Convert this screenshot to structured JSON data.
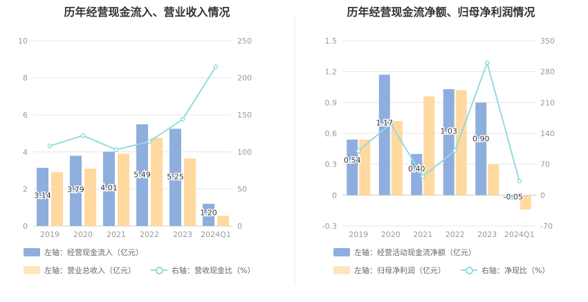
{
  "charts": [
    {
      "title": "历年经营现金流入、营业收入情况",
      "legend": {
        "bar1": "左轴：经营现金流入（亿元）",
        "bar2": "左轴：营业总收入（亿元）",
        "line": "右轴：营收现金比（%）"
      }
    },
    {
      "title": "历年经营现金流净额、归母净利润情况",
      "legend": {
        "bar1": "左轴：经营活动现金流净额（亿元）",
        "bar2": "左轴：归母净利润（亿元）",
        "line": "右轴：净现比（%）"
      }
    }
  ],
  "colors": {
    "bar1": "#8eaedd",
    "bar2": "#ffd99f",
    "line": "#93dade"
  },
  "chart_data": [
    {
      "type": "bar",
      "title": "历年经营现金流入、营业收入情况",
      "categories": [
        "2019",
        "2020",
        "2021",
        "2022",
        "2023",
        "2024Q1"
      ],
      "left_axis": {
        "ylim": [
          0,
          10
        ],
        "ticks": [
          0,
          2,
          4,
          6,
          8,
          10
        ]
      },
      "right_axis": {
        "ylim": [
          0,
          250
        ],
        "ticks": [
          0,
          50,
          100,
          150,
          200,
          250
        ]
      },
      "series": [
        {
          "name": "左轴：经营现金流入（亿元）",
          "kind": "bar",
          "axis": "left",
          "values": [
            3.14,
            3.79,
            4.01,
            5.49,
            5.25,
            1.2
          ],
          "labels": [
            "3.14",
            "3.79",
            "4.01",
            "5.49",
            "5.25",
            "1.20"
          ]
        },
        {
          "name": "左轴：营业总收入（亿元）",
          "kind": "bar",
          "axis": "left",
          "values": [
            2.9,
            3.1,
            3.9,
            4.75,
            3.65,
            0.55
          ]
        },
        {
          "name": "右轴：营收现金比（%）",
          "kind": "line",
          "axis": "right",
          "values": [
            108,
            122,
            103,
            114,
            144,
            215
          ]
        }
      ]
    },
    {
      "type": "bar",
      "title": "历年经营现金流净额、归母净利润情况",
      "categories": [
        "2019",
        "2020",
        "2021",
        "2022",
        "2023",
        "2024Q1"
      ],
      "left_axis": {
        "ylim": [
          -0.3,
          1.5
        ],
        "ticks": [
          -0.3,
          0,
          0.3,
          0.6,
          0.9,
          1.2,
          1.5
        ]
      },
      "right_axis": {
        "ylim": [
          -70,
          350
        ],
        "ticks": [
          -70,
          0,
          70,
          140,
          210,
          280,
          350
        ]
      },
      "series": [
        {
          "name": "左轴：经营活动现金流净额（亿元）",
          "kind": "bar",
          "axis": "left",
          "values": [
            0.54,
            1.17,
            0.4,
            1.03,
            0.9,
            -0.05
          ],
          "labels": [
            "0.54",
            "1.17",
            "0.40",
            "1.03",
            "0.90",
            "-0.05"
          ]
        },
        {
          "name": "左轴：归母净利润（亿元）",
          "kind": "bar",
          "axis": "left",
          "values": [
            0.54,
            0.72,
            0.96,
            1.02,
            0.3,
            -0.14
          ]
        },
        {
          "name": "右轴：净现比（%）",
          "kind": "line",
          "axis": "right",
          "values": [
            100,
            162,
            42,
            101,
            300,
            32
          ]
        }
      ]
    }
  ]
}
